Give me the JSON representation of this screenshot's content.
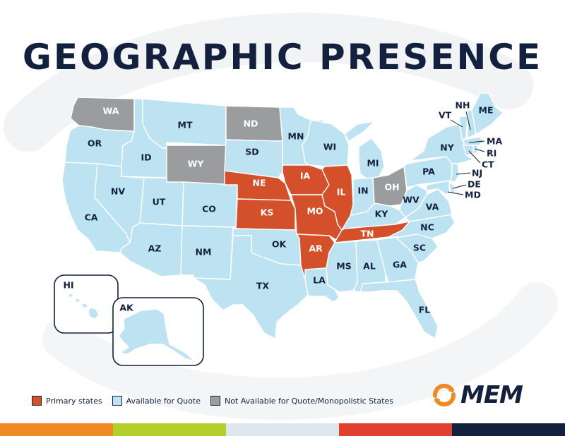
{
  "title": "GEOGRAPHIC PRESENCE",
  "colors": {
    "primary": "#d4502a",
    "available": "#bde3f3",
    "not_available": "#9a9c9e",
    "navy": "#13213f",
    "logo_orange": "#f08a24"
  },
  "states": {
    "WA": "not_available",
    "OR": "available",
    "CA": "available",
    "ID": "available",
    "NV": "available",
    "MT": "available",
    "WY": "not_available",
    "UT": "available",
    "AZ": "available",
    "CO": "available",
    "NM": "available",
    "ND": "not_available",
    "SD": "available",
    "NE": "primary",
    "KS": "primary",
    "OK": "available",
    "TX": "available",
    "MN": "available",
    "IA": "primary",
    "MO": "primary",
    "AR": "primary",
    "LA": "available",
    "WI": "available",
    "IL": "primary",
    "MI": "available",
    "IN": "available",
    "OH": "not_available",
    "KY": "available",
    "TN": "primary",
    "MS": "available",
    "AL": "available",
    "GA": "available",
    "FL": "available",
    "SC": "available",
    "NC": "available",
    "VA": "available",
    "WV": "available",
    "PA": "available",
    "NY": "available",
    "VT": "available",
    "NH": "available",
    "ME": "available",
    "MA": "available",
    "RI": "available",
    "CT": "available",
    "NJ": "available",
    "DE": "available",
    "MD": "available",
    "HI": "available",
    "AK": "available"
  },
  "insets": {
    "hawaii": "HI",
    "alaska": "AK"
  },
  "legend": [
    {
      "key": "primary",
      "label": "Primary states"
    },
    {
      "key": "available",
      "label": "Available for Quote"
    },
    {
      "key": "not_available",
      "label": "Not Available for Quote/Monopolistic States"
    }
  ],
  "logo": {
    "text": "MEM",
    "icon": "mem-swirl-icon"
  },
  "footer_colors": [
    "#ef8a24",
    "#b3cf2a",
    "#dfe7ee",
    "#e2402e",
    "#13213f"
  ]
}
